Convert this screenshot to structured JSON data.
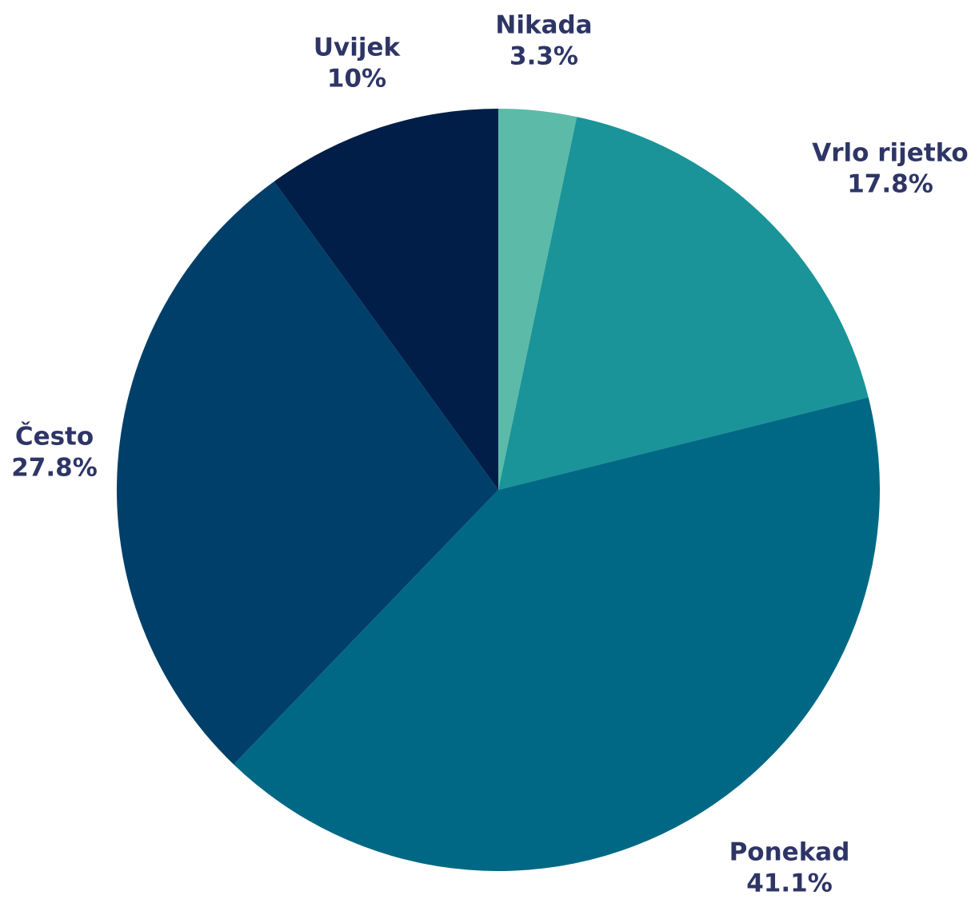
{
  "chart_data": {
    "type": "pie",
    "categories": [
      "Nikada",
      "Vrlo rijetko",
      "Ponekad",
      "Često",
      "Uvijek"
    ],
    "values": [
      3.3,
      17.8,
      41.1,
      27.8,
      10
    ],
    "value_labels": [
      "3.3%",
      "17.8%",
      "41.1%",
      "27.8%",
      "10%"
    ],
    "colors": [
      "#5cbaa8",
      "#1a9498",
      "#006885",
      "#003f69",
      "#001e48"
    ]
  }
}
